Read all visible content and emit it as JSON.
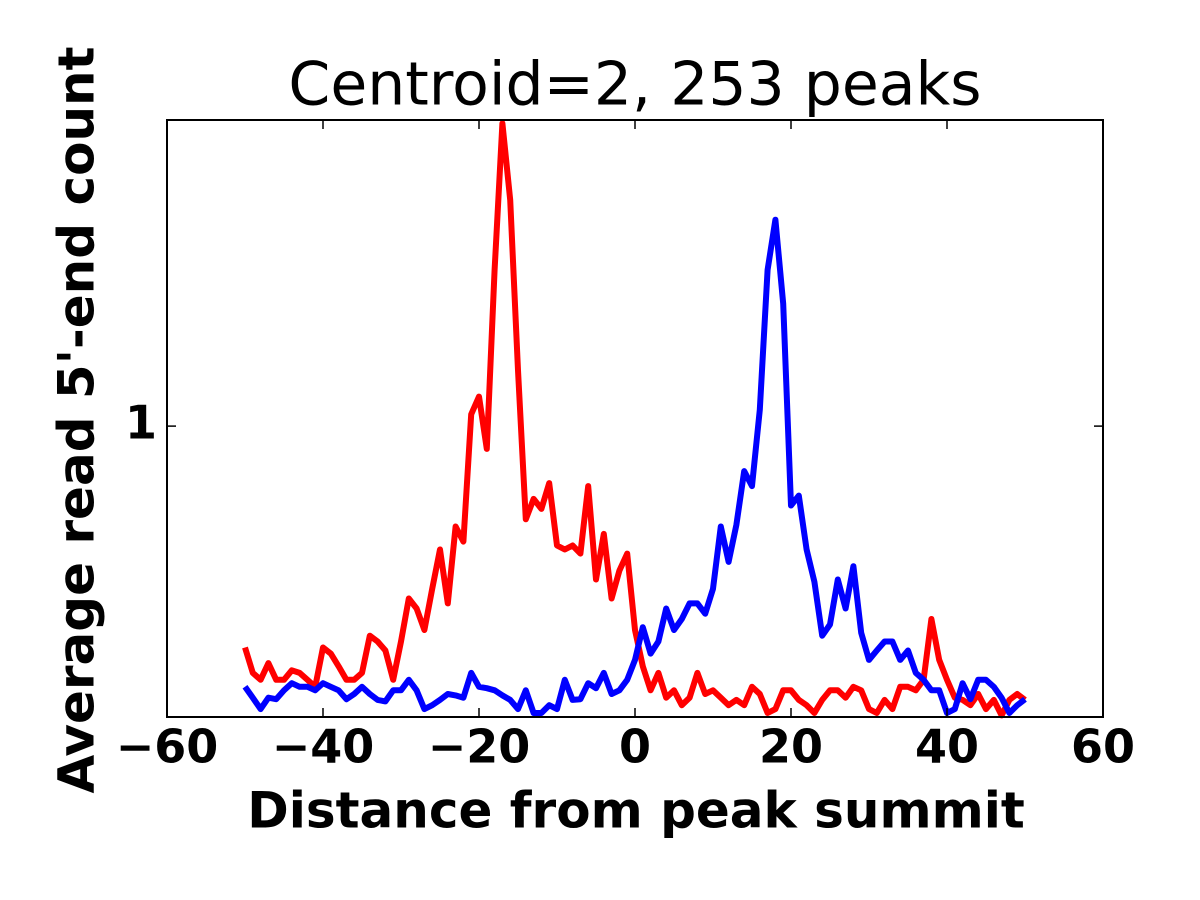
{
  "chart_data": {
    "type": "line",
    "title": "Centroid=2, 253 peaks",
    "x_label": "Distance from peak summit",
    "y_label": "Average read 5'-end count",
    "log_y": true,
    "grid": false,
    "xlim": [
      -60,
      60
    ],
    "xticks": [
      {
        "value": -60,
        "label": "−60"
      },
      {
        "value": -40,
        "label": "−40"
      },
      {
        "value": -20,
        "label": "−20"
      },
      0,
      20,
      40,
      60
    ],
    "ylim": [
      0.3,
      3.55
    ],
    "yticks": [
      1
    ],
    "x": [
      -50,
      -49,
      -48,
      -47,
      -46,
      -45,
      -44,
      -43,
      -42,
      -41,
      -40,
      -39,
      -38,
      -37,
      -36,
      -35,
      -34,
      -33,
      -32,
      -31,
      -30,
      -29,
      -28,
      -27,
      -26,
      -25,
      -24,
      -23,
      -22,
      -21,
      -20,
      -19,
      -18,
      -17,
      -16,
      -15,
      -14,
      -13,
      -12,
      -11,
      -10,
      -9,
      -8,
      -7,
      -6,
      -5,
      -4,
      -3,
      -2,
      -1,
      0,
      1,
      2,
      3,
      4,
      5,
      6,
      7,
      8,
      9,
      10,
      11,
      12,
      13,
      14,
      15,
      16,
      17,
      18,
      19,
      20,
      21,
      22,
      23,
      24,
      25,
      26,
      27,
      28,
      29,
      30,
      31,
      32,
      33,
      34,
      35,
      36,
      37,
      38,
      39,
      40,
      41,
      42,
      43,
      44,
      45,
      46,
      47,
      48,
      49,
      50
    ],
    "series": [
      {
        "color": "#ff0000",
        "values": [
          0.4,
          0.36,
          0.35,
          0.375,
          0.35,
          0.35,
          0.364,
          0.36,
          0.35,
          0.34,
          0.4,
          0.39,
          0.37,
          0.35,
          0.35,
          0.36,
          0.42,
          0.41,
          0.395,
          0.35,
          0.41,
          0.49,
          0.47,
          0.43,
          0.51,
          0.6,
          0.48,
          0.66,
          0.62,
          1.05,
          1.13,
          0.91,
          1.91,
          3.5,
          2.55,
          1.26,
          0.68,
          0.74,
          0.71,
          0.79,
          0.61,
          0.6,
          0.61,
          0.59,
          0.78,
          0.53,
          0.64,
          0.49,
          0.55,
          0.59,
          0.43,
          0.37,
          0.335,
          0.36,
          0.325,
          0.335,
          0.315,
          0.325,
          0.36,
          0.33,
          0.335,
          0.325,
          0.315,
          0.322,
          0.315,
          0.34,
          0.33,
          0.305,
          0.31,
          0.335,
          0.335,
          0.322,
          0.315,
          0.305,
          0.322,
          0.335,
          0.335,
          0.325,
          0.34,
          0.335,
          0.31,
          0.305,
          0.322,
          0.31,
          0.34,
          0.34,
          0.335,
          0.35,
          0.45,
          0.38,
          0.35,
          0.325,
          0.322,
          0.315,
          0.33,
          0.31,
          0.322,
          0.302,
          0.322,
          0.33,
          0.322
        ]
      },
      {
        "color": "#0000ff",
        "values": [
          0.34,
          0.325,
          0.31,
          0.325,
          0.323,
          0.335,
          0.345,
          0.34,
          0.34,
          0.335,
          0.345,
          0.34,
          0.335,
          0.323,
          0.33,
          0.34,
          0.33,
          0.322,
          0.32,
          0.335,
          0.335,
          0.35,
          0.335,
          0.31,
          0.315,
          0.322,
          0.33,
          0.328,
          0.325,
          0.36,
          0.34,
          0.338,
          0.335,
          0.328,
          0.322,
          0.31,
          0.335,
          0.305,
          0.305,
          0.315,
          0.31,
          0.35,
          0.322,
          0.323,
          0.345,
          0.338,
          0.36,
          0.33,
          0.335,
          0.35,
          0.38,
          0.435,
          0.39,
          0.41,
          0.47,
          0.43,
          0.45,
          0.48,
          0.48,
          0.46,
          0.51,
          0.66,
          0.57,
          0.665,
          0.83,
          0.78,
          1.07,
          1.91,
          2.35,
          1.66,
          0.72,
          0.75,
          0.6,
          0.525,
          0.42,
          0.44,
          0.53,
          0.47,
          0.56,
          0.425,
          0.38,
          0.395,
          0.41,
          0.41,
          0.38,
          0.395,
          0.36,
          0.35,
          0.335,
          0.335,
          0.305,
          0.31,
          0.345,
          0.323,
          0.35,
          0.35,
          0.34,
          0.325,
          0.305,
          0.315,
          0.323
        ]
      }
    ]
  }
}
